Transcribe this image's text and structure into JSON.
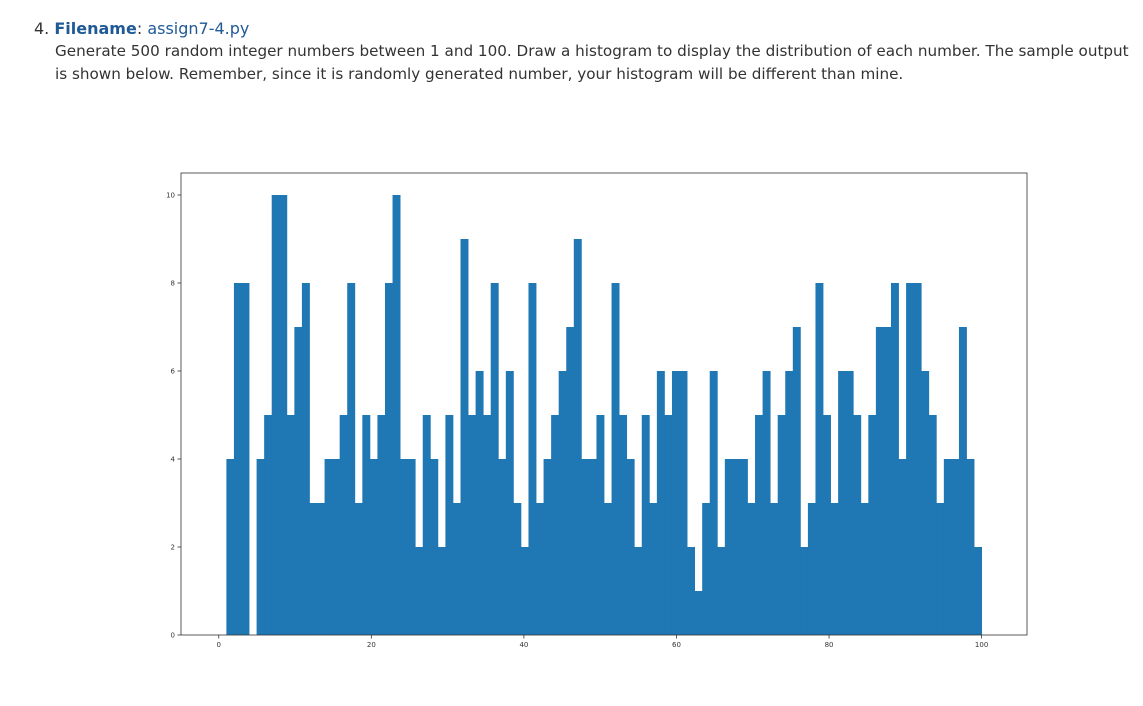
{
  "assignment": {
    "number": "4.",
    "filename_label": "Filename",
    "separator": ":",
    "filename": "assign7-4.py",
    "description": "Generate 500 random integer numbers between 1 and 100. Draw a histogram to display the distribution of each number. The sample output is shown below. Remember, since it is randomly generated number, your histogram will be different than mine."
  },
  "chart_data": {
    "type": "bar",
    "title": "",
    "xlabel": "",
    "ylabel": "",
    "bar_color": "#1f77b4",
    "xlim": [
      -4.95,
      105.95
    ],
    "ylim": [
      0,
      10.5
    ],
    "xticks": [
      0,
      20,
      40,
      60,
      80,
      100
    ],
    "yticks": [
      0,
      2,
      4,
      6,
      8,
      10
    ],
    "bins": {
      "start": 1,
      "end": 100,
      "count": 100
    },
    "counts": [
      4,
      8,
      8,
      0,
      4,
      5,
      10,
      10,
      5,
      7,
      8,
      3,
      3,
      4,
      4,
      5,
      8,
      3,
      5,
      4,
      5,
      8,
      10,
      4,
      4,
      2,
      5,
      4,
      2,
      5,
      3,
      9,
      5,
      6,
      5,
      8,
      4,
      6,
      3,
      2,
      8,
      3,
      4,
      5,
      6,
      7,
      9,
      4,
      4,
      5,
      3,
      8,
      5,
      4,
      2,
      5,
      3,
      6,
      5,
      6,
      6,
      2,
      1,
      3,
      6,
      2,
      4,
      4,
      4,
      3,
      5,
      6,
      3,
      5,
      6,
      7,
      2,
      3,
      8,
      5,
      3,
      6,
      6,
      5,
      3,
      5,
      7,
      7,
      8,
      4,
      8,
      8,
      6,
      5,
      3,
      4,
      4,
      7,
      4,
      2
    ],
    "grid": false,
    "legend": "none"
  }
}
